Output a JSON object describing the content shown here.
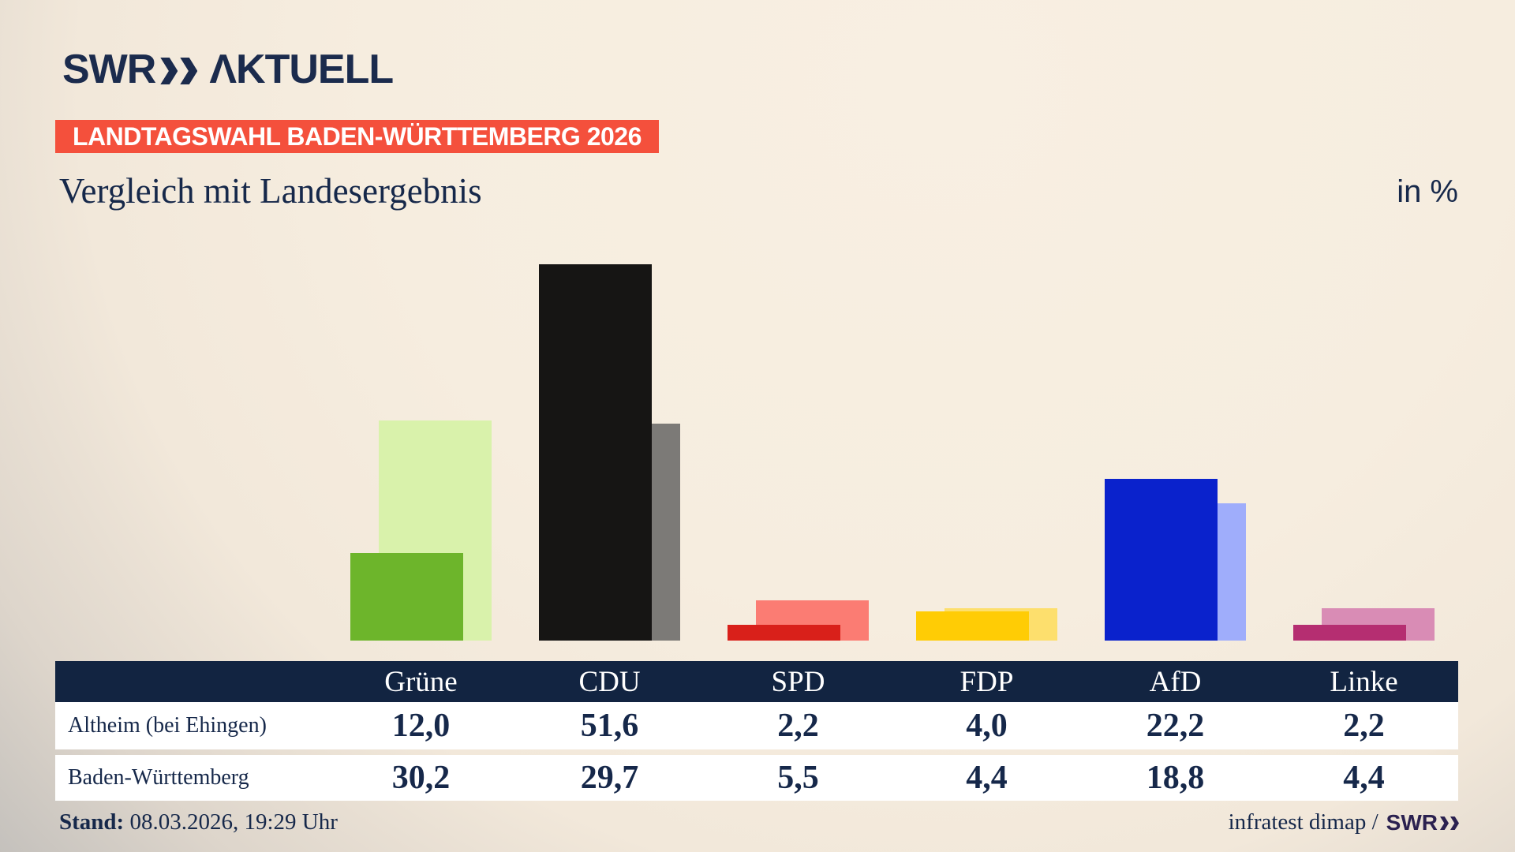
{
  "brand": {
    "logo_text": "SWR",
    "logo_product": "ΛKTUELL"
  },
  "badge": {
    "label": "LANDTAGSWAHL BADEN-WÜRTTEMBERG 2026",
    "bg": "#f4503c"
  },
  "heading": {
    "title": "Vergleich mit Landesergebnis",
    "unit": "in %"
  },
  "chart_data": {
    "type": "bar",
    "title": "Vergleich mit Landesergebnis",
    "unit": "%",
    "categories": [
      "Grüne",
      "CDU",
      "SPD",
      "FDP",
      "AfD",
      "Linke"
    ],
    "series": [
      {
        "name": "Altheim (bei Ehingen)",
        "values": [
          12.0,
          51.6,
          2.2,
          4.0,
          22.2,
          2.2
        ],
        "colors": [
          "#6db52b",
          "#161514",
          "#d9201a",
          "#ffcc05",
          "#0a22cc",
          "#b52e71"
        ]
      },
      {
        "name": "Baden-Württemberg",
        "values": [
          30.2,
          29.7,
          5.5,
          4.4,
          18.8,
          4.4
        ],
        "colors": [
          "#d9f2ab",
          "#7c7a77",
          "#fb7c73",
          "#fddf6d",
          "#9fadfb",
          "#d98cb5"
        ]
      }
    ],
    "ylim": [
      0,
      55
    ],
    "grid": false,
    "legend_position": "table-row-labels",
    "bar_style": "overlapping-pairs (local value in front, state value behind offset right)"
  },
  "table": {
    "columns": [
      "Grüne",
      "CDU",
      "SPD",
      "FDP",
      "AfD",
      "Linke"
    ],
    "rows": [
      {
        "label": "Altheim (bei Ehingen)",
        "values": [
          "12,0",
          "51,6",
          "2,2",
          "4,0",
          "22,2",
          "2,2"
        ]
      },
      {
        "label": "Baden-Württemberg",
        "values": [
          "30,2",
          "29,7",
          "5,5",
          "4,4",
          "18,8",
          "4,4"
        ]
      }
    ],
    "header_bg": "#122441"
  },
  "footer": {
    "stand_label": "Stand:",
    "stand_value": " 08.03.2026, 19:29 Uhr",
    "source_text": "infratest dimap /",
    "source_brand": "SWR"
  },
  "colors": {
    "navy_text": "#16284a",
    "table_header_bg": "#122441",
    "badge_bg": "#f4503c",
    "background_cream": "#f6eddf",
    "background_gray": "#c2bfbb",
    "footer_brand": "#2b2150"
  }
}
